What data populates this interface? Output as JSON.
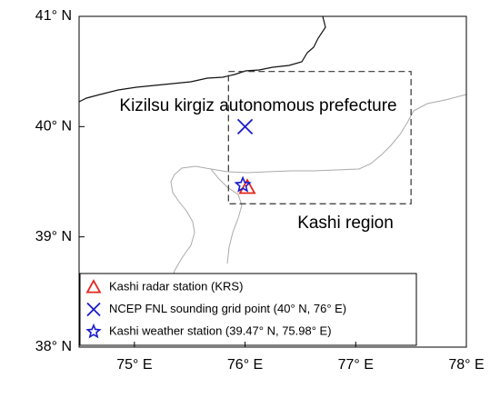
{
  "map": {
    "xlim": [
      74.5,
      78
    ],
    "ylim": [
      38,
      41
    ],
    "xticks": [
      {
        "value": 75,
        "label": "75° E"
      },
      {
        "value": 76,
        "label": "76° E"
      },
      {
        "value": 77,
        "label": "77° E"
      },
      {
        "value": 78,
        "label": "78° E"
      }
    ],
    "yticks": [
      {
        "value": 38,
        "label": "38° N"
      },
      {
        "value": 39,
        "label": "39° N"
      },
      {
        "value": 40,
        "label": "40° N"
      },
      {
        "value": 41,
        "label": "41° N"
      }
    ],
    "region_box": {
      "lon": [
        75.85,
        77.5
      ],
      "lat": [
        39.3,
        40.5
      ]
    },
    "region_labels": [
      "Kizilsu kirgiz autonomous prefecture",
      "Kashi region"
    ],
    "points": [
      {
        "name": "Kashi radar station (KRS)",
        "marker": "triangle",
        "color": "#e5231b",
        "lon": 76.02,
        "lat": 39.45
      },
      {
        "name": "NCEP FNL sounding grid point (40° N, 76° E)",
        "marker": "cross",
        "color": "#1a1acc",
        "lon": 76,
        "lat": 40
      },
      {
        "name": "Kashi weather station (39.47° N, 75.98° E)",
        "marker": "star",
        "color": "#1a1acc",
        "lon": 75.98,
        "lat": 39.47
      }
    ]
  }
}
